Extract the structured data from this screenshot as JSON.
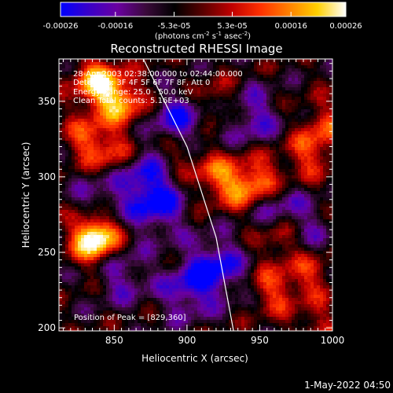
{
  "chart_data": {
    "type": "heatmap",
    "title": "Reconstructed RHESSI Image",
    "xlabel": "Heliocentric X (arcsec)",
    "ylabel": "Heliocentric Y (arcsec)",
    "xlim": [
      812,
      1000
    ],
    "ylim": [
      198,
      378
    ],
    "x_ticks": [
      850,
      900,
      950,
      1000
    ],
    "y_ticks": [
      200,
      250,
      300,
      350
    ],
    "colorbar": {
      "range": [
        -0.00026,
        0.00026
      ],
      "tick_values": [
        -0.00026,
        -0.00016,
        -5.3e-05,
        5.3e-05,
        0.00016,
        0.00026
      ],
      "tick_labels": [
        "-0.00026",
        "-0.00016",
        "-5.3e-05",
        "5.3e-05",
        "0.00016",
        "0.00026"
      ],
      "unit_line1": "(photons cm",
      "unit_exp1": "-2",
      "unit_mid": " s",
      "unit_exp2": "-1",
      "unit_mid2": " asec",
      "unit_exp3": "-2",
      "unit_end": ")",
      "colors": [
        "#0000ff",
        "#3a00c8",
        "#6a00a0",
        "#3a0a3a",
        "#000000",
        "#5a0000",
        "#c00000",
        "#ff3000",
        "#ff8000",
        "#ffd000",
        "#ffffff"
      ]
    },
    "annotations": [
      "28-Apr-2003 02:38:00.000 to 02:44:00.000",
      "Detectors: 3F 4F 5F 6F 7F 8F, Att 0",
      "Energy Range: 25.0 - 50.0 keV",
      "Clean   Total counts: 5.16E+03"
    ],
    "peak_label": "Position of Peak = [829,360]",
    "limb_curve": [
      [
        870,
        378
      ],
      [
        900,
        320
      ],
      [
        920,
        260
      ],
      [
        932,
        198
      ]
    ],
    "bright_regions": [
      {
        "x": 838,
        "y": 362,
        "value": 0.00026
      },
      {
        "x": 855,
        "y": 350,
        "value": 0.00022
      },
      {
        "x": 832,
        "y": 325,
        "value": 0.00015
      },
      {
        "x": 850,
        "y": 315,
        "value": 0.00012
      },
      {
        "x": 895,
        "y": 318,
        "value": 0.00012
      },
      {
        "x": 920,
        "y": 300,
        "value": 0.00016
      },
      {
        "x": 940,
        "y": 293,
        "value": 0.00018
      },
      {
        "x": 955,
        "y": 300,
        "value": 0.00012
      },
      {
        "x": 985,
        "y": 315,
        "value": 0.00014
      },
      {
        "x": 995,
        "y": 335,
        "value": 0.00012
      },
      {
        "x": 965,
        "y": 260,
        "value": 0.00015
      },
      {
        "x": 960,
        "y": 225,
        "value": 0.00014
      },
      {
        "x": 985,
        "y": 235,
        "value": 0.00012
      },
      {
        "x": 835,
        "y": 262,
        "value": 0.00015
      },
      {
        "x": 838,
        "y": 258,
        "value": 0.00023
      },
      {
        "x": 920,
        "y": 350,
        "value": 0.0001
      },
      {
        "x": 990,
        "y": 200,
        "value": 0.0001
      }
    ],
    "dark_regions": [
      {
        "x": 895,
        "y": 335,
        "value": -0.0002
      },
      {
        "x": 880,
        "y": 280,
        "value": -0.00018
      },
      {
        "x": 920,
        "y": 240,
        "value": -0.0002
      },
      {
        "x": 900,
        "y": 225,
        "value": -0.00015
      },
      {
        "x": 855,
        "y": 235,
        "value": -0.00012
      },
      {
        "x": 945,
        "y": 340,
        "value": -0.00014
      },
      {
        "x": 960,
        "y": 280,
        "value": -0.00012
      },
      {
        "x": 980,
        "y": 265,
        "value": -0.0001
      },
      {
        "x": 870,
        "y": 300,
        "value": -0.00016
      },
      {
        "x": 840,
        "y": 285,
        "value": -0.0001
      }
    ]
  },
  "footer": {
    "date": "1-May-2022 04:50"
  }
}
